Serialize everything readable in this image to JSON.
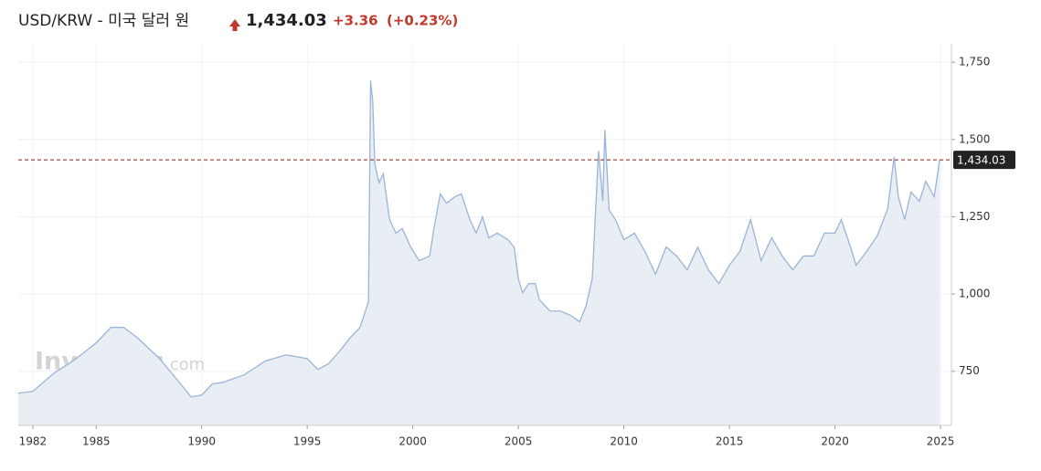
{
  "header": {
    "title": "USD/KRW - 미국 달러 원",
    "price": "1,434.03",
    "change": "+3.36",
    "change_pct": "(+0.23%)"
  },
  "chart_data": {
    "type": "area",
    "watermark": [
      "Investing",
      ".com"
    ],
    "color": "#9ab5d6",
    "fill": "#e9edf4",
    "grid": true,
    "x": [
      1981.3,
      1982,
      1983,
      1984,
      1985,
      1985.7,
      1986.3,
      1987,
      1988,
      1989,
      1989.5,
      1990,
      1990.5,
      1991,
      1992,
      1993,
      1994,
      1995,
      1995.5,
      1996,
      1996.5,
      1997,
      1997.5,
      1997.9,
      1998.0,
      1998.1,
      1998.2,
      1998.4,
      1998.6,
      1998.9,
      1999.2,
      1999.5,
      1999.9,
      2000.3,
      2000.8,
      2001.0,
      2001.3,
      2001.6,
      2002.0,
      2002.3,
      2002.7,
      2003.0,
      2003.3,
      2003.6,
      2004.0,
      2004.5,
      2004.8,
      2005.0,
      2005.2,
      2005.5,
      2005.8,
      2006.0,
      2006.5,
      2007.0,
      2007.5,
      2007.9,
      2008.2,
      2008.5,
      2008.8,
      2009.0,
      2009.1,
      2009.3,
      2009.6,
      2010.0,
      2010.5,
      2011.0,
      2011.5,
      2012.0,
      2012.5,
      2013.0,
      2013.5,
      2014.0,
      2014.5,
      2015.0,
      2015.5,
      2016.0,
      2016.5,
      2017.0,
      2017.5,
      2018.0,
      2018.5,
      2019.0,
      2019.5,
      2020.0,
      2020.3,
      2020.8,
      2021.0,
      2021.5,
      2022.0,
      2022.5,
      2022.8,
      2023.0,
      2023.3,
      2023.6,
      2024.0,
      2024.3,
      2024.7,
      2024.96
    ],
    "values": [
      679,
      685,
      744,
      788,
      842,
      892,
      892,
      856,
      791,
      709,
      667,
      673,
      709,
      714,
      738,
      783,
      803,
      791,
      756,
      774,
      812,
      856,
      892,
      975,
      1691,
      1626,
      1419,
      1360,
      1389,
      1241,
      1197,
      1212,
      1152,
      1108,
      1123,
      1212,
      1324,
      1294,
      1315,
      1324,
      1241,
      1197,
      1250,
      1182,
      1197,
      1176,
      1152,
      1049,
      1004,
      1034,
      1034,
      981,
      945,
      945,
      930,
      910,
      960,
      1049,
      1463,
      1300,
      1531,
      1271,
      1241,
      1176,
      1197,
      1138,
      1064,
      1152,
      1123,
      1078,
      1152,
      1078,
      1034,
      1093,
      1138,
      1241,
      1108,
      1182,
      1123,
      1078,
      1123,
      1123,
      1197,
      1197,
      1241,
      1138,
      1093,
      1138,
      1188,
      1277,
      1443,
      1315,
      1241,
      1330,
      1300,
      1365,
      1315,
      1434.03
    ],
    "current": {
      "value": 1434.03,
      "label": "1,434.03"
    },
    "xlim": [
      1981.31,
      2025.04
    ],
    "xticks": [
      1982,
      1985,
      1990,
      1995,
      2000,
      2005,
      2010,
      2015,
      2020,
      2025
    ],
    "ylim": [
      575,
      1780
    ],
    "yticks": [
      750,
      {
        "value": 1000,
        "label": "1,000"
      },
      {
        "value": 1250,
        "label": "1,250"
      },
      {
        "value": 1500,
        "label": "1,500"
      },
      {
        "value": 1750,
        "label": "1,750"
      }
    ]
  }
}
